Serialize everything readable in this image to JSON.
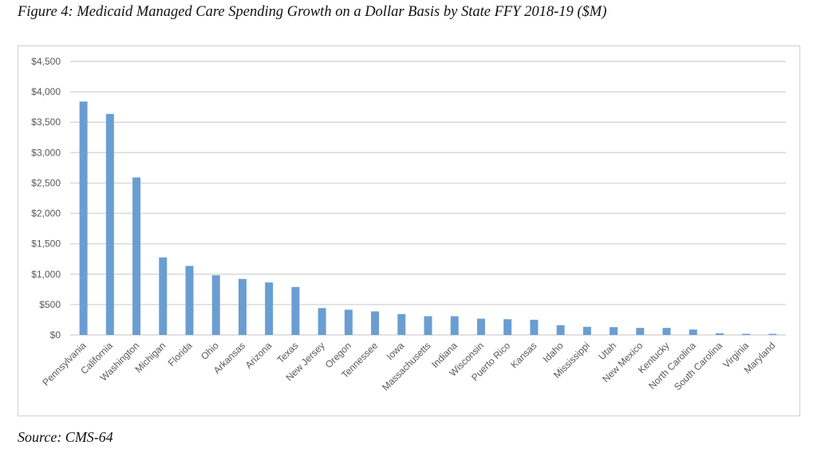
{
  "title": "Figure 4: Medicaid Managed Care Spending Growth on a Dollar Basis by State FFY 2018-19 ($M)",
  "source": "Source: CMS-64",
  "chart_data": {
    "type": "bar",
    "title": "Figure 4: Medicaid Managed Care Spending Growth on a Dollar Basis by State FFY 2018-19 ($M)",
    "xlabel": "",
    "ylabel": "",
    "ylim": [
      0,
      4500
    ],
    "yticks": [
      "$0",
      "$500",
      "$1,000",
      "$1,500",
      "$2,000",
      "$2,500",
      "$3,000",
      "$3,500",
      "$4,000",
      "$4,500"
    ],
    "grid": true,
    "bar_color": "#6a9ed2",
    "categories": [
      "Pennsylvania",
      "California",
      "Washington",
      "Michigan",
      "Florida",
      "Ohio",
      "Arkansas",
      "Arizona",
      "Texas",
      "New Jersey",
      "Oregon",
      "Tennessee",
      "Iowa",
      "Massachusetts",
      "Indiana",
      "Wisconsin",
      "Puerto Rico",
      "Kansas",
      "Idaho",
      "Mississippi",
      "Utah",
      "New Mexico",
      "Kentucky",
      "North Carolina",
      "South Carolina",
      "Virginia",
      "Maryland"
    ],
    "values": [
      3840,
      3636,
      2592,
      1276,
      1136,
      982,
      921,
      864,
      789,
      442,
      415,
      388,
      344,
      308,
      308,
      268,
      259,
      250,
      161,
      134,
      129,
      116,
      116,
      89,
      27,
      18,
      18
    ]
  }
}
